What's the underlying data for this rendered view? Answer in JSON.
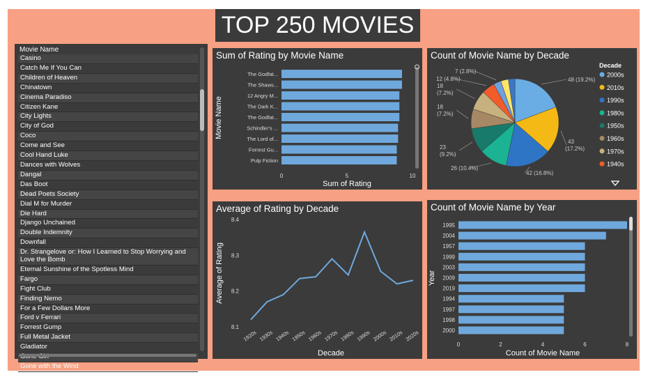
{
  "dashboard": {
    "title": "TOP 250 MOVIES"
  },
  "movie_list": {
    "header": "Movie Name",
    "items": [
      "Casino",
      "Catch Me If You Can",
      "Children of Heaven",
      "Chinatown",
      "Cinema Paradiso",
      "Citizen Kane",
      "City Lights",
      "City of God",
      "Coco",
      "Come and See",
      "Cool Hand Luke",
      "Dances with Wolves",
      "Dangal",
      "Das Boot",
      "Dead Poets Society",
      "Dial M for Murder",
      "Die Hard",
      "Django Unchained",
      "Double Indemnity",
      "Downfall",
      "Dr. Strangelove or: How I Learned to Stop Worrying and Love the Bomb",
      "Eternal Sunshine of the Spotless Mind",
      "Fargo",
      "Fight Club",
      "Finding Nemo",
      "For a Few Dollars More",
      "Ford v Ferrari",
      "Forrest Gump",
      "Full Metal Jacket",
      "Gladiator",
      "Gone Girl",
      "Gone with the Wind"
    ]
  },
  "chart_data": [
    {
      "type": "bar",
      "orientation": "horizontal",
      "title": "Sum of Rating by Movie Name",
      "xlabel": "Sum of Rating",
      "ylabel": "Movie Name",
      "categories": [
        "The Godfat...",
        "The Shaws...",
        "12 Angry M...",
        "The Dark K...",
        "The Godfat...",
        "Schindler's ...",
        "The Lord of...",
        "Forrest Gu...",
        "Pulp Fiction"
      ],
      "values": [
        9.2,
        9.2,
        9.0,
        9.0,
        9.0,
        8.9,
        8.9,
        8.8,
        8.8
      ],
      "xlim": [
        0,
        10
      ],
      "xticks": [
        0,
        5,
        10
      ],
      "color": "#6fa8dc"
    },
    {
      "type": "pie",
      "title": "Count of Movie Name by Decade",
      "legend_title": "Decade",
      "legend_position": "right",
      "slices": [
        {
          "label": "2000s",
          "value": 48,
          "text": "48 (19.2%)",
          "color": "#6aade4"
        },
        {
          "label": "2010s",
          "value": 43,
          "text": "43 (17.2%)",
          "color": "#f5b915"
        },
        {
          "label": "1990s",
          "value": 42,
          "text": "42 (16.8%)",
          "color": "#2f75c5"
        },
        {
          "label": "1980s",
          "value": 26,
          "text": "26 (10.4%)",
          "color": "#1ab394"
        },
        {
          "label": "1950s",
          "value": 23,
          "text": "23 (9.2%)",
          "color": "#177a6b"
        },
        {
          "label": "1960s",
          "value": 18,
          "text": "18 (7.2%)",
          "color": "#a68964"
        },
        {
          "label": "1970s",
          "value": 18,
          "text": "18 (7.2%)",
          "color": "#c7b17f"
        },
        {
          "label": "1940s",
          "value": 12,
          "text": "12 (4.8%)",
          "color": "#f15c2a"
        },
        {
          "label": "",
          "value": 7,
          "text": "7 (2.8%)",
          "color": "#6ea0dc"
        },
        {
          "label": "",
          "value": 7,
          "text": "",
          "color": "#fde46a"
        },
        {
          "label": "",
          "value": 6,
          "text": "",
          "color": "#3b78c5"
        }
      ]
    },
    {
      "type": "line",
      "title": "Average of Rating by Decade",
      "xlabel": "Decade",
      "ylabel": "Average of Rating",
      "categories": [
        "1920s",
        "1930s",
        "1940s",
        "1950s",
        "1960s",
        "1970s",
        "1980s",
        "1990s",
        "2000s",
        "2010s",
        "2020s"
      ],
      "values": [
        8.12,
        8.17,
        8.19,
        8.235,
        8.24,
        8.29,
        8.245,
        8.365,
        8.255,
        8.22,
        8.23
      ],
      "ylim": [
        8.1,
        8.4
      ],
      "yticks": [
        8.1,
        8.2,
        8.3,
        8.4
      ],
      "color": "#6fa8dc"
    },
    {
      "type": "bar",
      "orientation": "horizontal",
      "title": "Count of Movie Name by Year",
      "xlabel": "Count of Movie Name",
      "ylabel": "Year",
      "categories": [
        "1995",
        "2004",
        "1957",
        "1999",
        "2003",
        "2009",
        "2019",
        "1994",
        "1997",
        "1998",
        "2000"
      ],
      "values": [
        8,
        7,
        6,
        6,
        6,
        6,
        6,
        5,
        5,
        5,
        5
      ],
      "xlim": [
        0,
        8
      ],
      "xticks": [
        0,
        2,
        4,
        6,
        8
      ],
      "color": "#6fa8dc"
    }
  ]
}
